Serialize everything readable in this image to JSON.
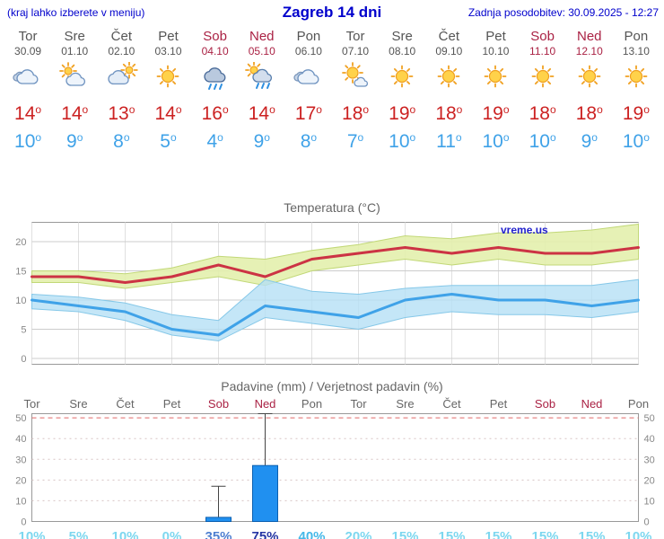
{
  "page": {
    "header": {
      "menu_note": "(kraj lahko izberete v meniju)",
      "title": "Zagreb 14 dni",
      "last_update": "Zadnja posodobitev: 30.09.2025 - 12:27"
    },
    "watermark": "vreme.us",
    "colors": {
      "header_blue": "#0000cc",
      "weekday_text": "#555555",
      "weekend_text": "#aa2244",
      "tmax_red": "#cc2222",
      "tmin_blue": "#3fa2e8"
    }
  },
  "days": [
    {
      "name": "Tor",
      "date": "30.09",
      "weekend": false,
      "icon": "cloudy",
      "tmax": 14,
      "tmin": 10
    },
    {
      "name": "Sre",
      "date": "01.10",
      "weekend": false,
      "icon": "partly-cloudy",
      "tmax": 14,
      "tmin": 9
    },
    {
      "name": "Čet",
      "date": "02.10",
      "weekend": false,
      "icon": "mostly-cloudy",
      "tmax": 13,
      "tmin": 8
    },
    {
      "name": "Pet",
      "date": "03.10",
      "weekend": false,
      "icon": "sunny",
      "tmax": 14,
      "tmin": 5
    },
    {
      "name": "Sob",
      "date": "04.10",
      "weekend": true,
      "icon": "rain",
      "tmax": 16,
      "tmin": 4
    },
    {
      "name": "Ned",
      "date": "05.10",
      "weekend": true,
      "icon": "rain-showers",
      "tmax": 14,
      "tmin": 9
    },
    {
      "name": "Pon",
      "date": "06.10",
      "weekend": false,
      "icon": "cloudy",
      "tmax": 17,
      "tmin": 8
    },
    {
      "name": "Tor",
      "date": "07.10",
      "weekend": false,
      "icon": "mostly-sunny",
      "tmax": 18,
      "tmin": 7
    },
    {
      "name": "Sre",
      "date": "08.10",
      "weekend": false,
      "icon": "sunny",
      "tmax": 19,
      "tmin": 10
    },
    {
      "name": "Čet",
      "date": "09.10",
      "weekend": false,
      "icon": "sunny",
      "tmax": 18,
      "tmin": 11
    },
    {
      "name": "Pet",
      "date": "10.10",
      "weekend": false,
      "icon": "sunny",
      "tmax": 19,
      "tmin": 10
    },
    {
      "name": "Sob",
      "date": "11.10",
      "weekend": true,
      "icon": "sunny",
      "tmax": 18,
      "tmin": 10
    },
    {
      "name": "Ned",
      "date": "12.10",
      "weekend": true,
      "icon": "sunny",
      "tmax": 18,
      "tmin": 9
    },
    {
      "name": "Pon",
      "date": "13.10",
      "weekend": false,
      "icon": "sunny",
      "tmax": 19,
      "tmin": 10
    }
  ],
  "chart_data": [
    {
      "type": "line",
      "title": "Temperatura (°C)",
      "categories": [
        "Tor 30.09",
        "Sre 01.10",
        "Čet 02.10",
        "Pet 03.10",
        "Sob 04.10",
        "Ned 05.10",
        "Pon 06.10",
        "Tor 07.10",
        "Sre 08.10",
        "Čet 09.10",
        "Pet 10.10",
        "Sob 11.10",
        "Ned 12.10",
        "Pon 13.10"
      ],
      "ylim": [
        -1,
        23
      ],
      "yticks": [
        0,
        5,
        10,
        15,
        20
      ],
      "grid": true,
      "watermark": "vreme.us",
      "series": [
        {
          "name": "max-temp",
          "color": "#cc3344",
          "values": [
            14,
            14,
            13,
            14,
            16,
            14,
            17,
            18,
            19,
            18,
            19,
            18,
            18,
            19
          ]
        },
        {
          "name": "min-temp",
          "color": "#3fa2e8",
          "values": [
            10,
            9,
            8,
            5,
            4,
            9,
            8,
            7,
            10,
            11,
            10,
            10,
            9,
            10
          ]
        }
      ],
      "bands": [
        {
          "name": "max-temp-range",
          "fill": "#e3efad",
          "edge": "#c2d878",
          "upper": [
            15,
            15,
            14.5,
            15.5,
            17.5,
            17,
            18.5,
            19.5,
            21,
            20.5,
            21.5,
            21.5,
            22,
            23
          ],
          "lower": [
            13,
            13,
            12,
            13,
            14,
            12.5,
            15,
            16,
            17,
            16,
            17,
            16,
            16,
            17
          ]
        },
        {
          "name": "min-temp-range",
          "fill": "#b5e0f5",
          "edge": "#86c8e8",
          "upper": [
            11,
            10.5,
            9.5,
            7.5,
            6.5,
            13.5,
            11.5,
            11,
            12,
            12.5,
            12.5,
            12.5,
            12.5,
            13.5
          ],
          "lower": [
            8.5,
            8,
            6.5,
            4,
            3,
            7,
            6,
            5,
            7,
            8,
            7.5,
            7.5,
            7,
            8
          ]
        }
      ]
    },
    {
      "type": "bar",
      "title": "Padavine (mm) / Verjetnost padavin (%)",
      "categories": [
        "Tor",
        "Sre",
        "Čet",
        "Pet",
        "Sob",
        "Ned",
        "Pon",
        "Tor",
        "Sre",
        "Čet",
        "Pet",
        "Sob",
        "Ned",
        "Pon"
      ],
      "weekend": [
        false,
        false,
        false,
        false,
        true,
        true,
        false,
        false,
        false,
        false,
        false,
        true,
        true,
        false
      ],
      "values": [
        0,
        0,
        0,
        0,
        2,
        27,
        0,
        0,
        0,
        0,
        0,
        0,
        0,
        0
      ],
      "range_low": [
        0,
        0,
        0,
        0,
        0,
        5,
        0,
        0,
        0,
        0,
        0,
        0,
        0,
        0
      ],
      "range_high": [
        0,
        0,
        0,
        0,
        17,
        52,
        0,
        0,
        0,
        0,
        0,
        0,
        0,
        0
      ],
      "probabilities": [
        "10%",
        "5%",
        "10%",
        "0%",
        "35%",
        "75%",
        "40%",
        "20%",
        "15%",
        "15%",
        "15%",
        "15%",
        "15%",
        "10%"
      ],
      "prob_colors": [
        "#7dd7ef",
        "#7dd7ef",
        "#7dd7ef",
        "#7dd7ef",
        "#4e7fd0",
        "#2636a4",
        "#45b8e8",
        "#7dd7ef",
        "#7dd7ef",
        "#7dd7ef",
        "#7dd7ef",
        "#7dd7ef",
        "#7dd7ef",
        "#7dd7ef"
      ],
      "ylim": [
        0,
        52
      ],
      "yticks": [
        0,
        10,
        20,
        30,
        40,
        50
      ],
      "bar_color": "#2090f0",
      "bar_edge": "#0b5fb0"
    }
  ]
}
